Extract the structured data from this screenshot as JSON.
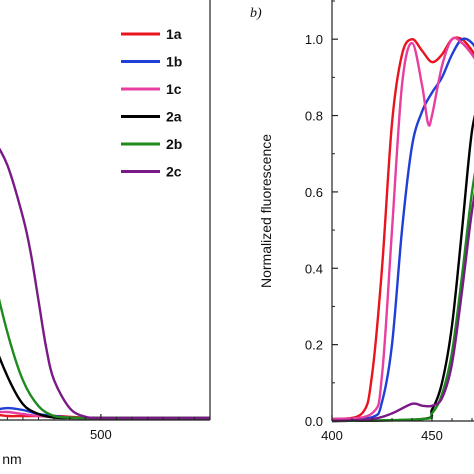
{
  "chart_data": [
    {
      "type": "line",
      "panel": "a",
      "title": "",
      "xlabel": "nm",
      "ylabel": "",
      "xlim": [
        400,
        570
      ],
      "ylim": [
        0,
        1.05
      ],
      "x_ticks": [
        500
      ],
      "grid": false,
      "legend_placement": "top-right",
      "legend": [
        {
          "name": "1a",
          "color": "#e8141e"
        },
        {
          "name": "1b",
          "color": "#1f3fd6"
        },
        {
          "name": "1c",
          "color": "#e83ea0"
        },
        {
          "name": "2a",
          "color": "#000000"
        },
        {
          "name": "2b",
          "color": "#1e8a1e"
        },
        {
          "name": "2c",
          "color": "#7a1a86"
        }
      ],
      "series": [
        {
          "name": "1a",
          "color": "#e8141e",
          "x": [
            400,
            410,
            420,
            430,
            440,
            450,
            460,
            470,
            480,
            490,
            500,
            520,
            540,
            570
          ],
          "y": [
            0.04,
            0.03,
            0.02,
            0.015,
            0.01,
            0.01,
            0.01,
            0.01,
            0.008,
            0.006,
            0.005,
            0.005,
            0.005,
            0.005
          ]
        },
        {
          "name": "1b",
          "color": "#1f3fd6",
          "x": [
            400,
            410,
            420,
            430,
            440,
            450,
            460,
            470,
            480,
            490,
            500,
            520,
            540,
            570
          ],
          "y": [
            0.05,
            0.04,
            0.03,
            0.025,
            0.03,
            0.025,
            0.015,
            0.01,
            0.006,
            0.005,
            0.005,
            0.005,
            0.005,
            0.005
          ]
        },
        {
          "name": "1c",
          "color": "#e83ea0",
          "x": [
            400,
            410,
            420,
            430,
            440,
            450,
            460,
            470,
            480,
            490,
            500,
            520,
            540,
            570
          ],
          "y": [
            0.045,
            0.035,
            0.03,
            0.02,
            0.02,
            0.015,
            0.01,
            0.008,
            0.006,
            0.005,
            0.005,
            0.005,
            0.005,
            0.005
          ]
        },
        {
          "name": "2a",
          "color": "#000000",
          "x": [
            400,
            410,
            420,
            430,
            440,
            450,
            460,
            470,
            480,
            490,
            500,
            520,
            540,
            570
          ],
          "y": [
            0.53,
            0.46,
            0.34,
            0.21,
            0.11,
            0.04,
            0.015,
            0.006,
            0.005,
            0.005,
            0.005,
            0.005,
            0.005,
            0.005
          ]
        },
        {
          "name": "2b",
          "color": "#1e8a1e",
          "x": [
            400,
            410,
            420,
            430,
            440,
            450,
            460,
            470,
            480,
            490,
            500,
            520,
            540,
            570
          ],
          "y": [
            0.8,
            0.71,
            0.55,
            0.38,
            0.22,
            0.1,
            0.035,
            0.01,
            0.006,
            0.005,
            0.005,
            0.005,
            0.005,
            0.005
          ]
        },
        {
          "name": "2c",
          "color": "#7a1a86",
          "x": [
            400,
            410,
            420,
            430,
            440,
            450,
            455,
            460,
            465,
            470,
            480,
            490,
            500,
            520,
            540,
            570
          ],
          "y": [
            0.93,
            0.85,
            0.76,
            0.71,
            0.64,
            0.51,
            0.42,
            0.3,
            0.18,
            0.1,
            0.03,
            0.008,
            0.005,
            0.005,
            0.005,
            0.005
          ]
        }
      ]
    },
    {
      "type": "line",
      "panel": "b",
      "panel_label": "b)",
      "title": "",
      "xlabel": "",
      "ylabel": "Normalized fluorescence",
      "xlim": [
        400,
        475
      ],
      "ylim": [
        0,
        1.1
      ],
      "x_ticks": [
        400,
        450
      ],
      "y_ticks": [
        "0.0",
        "0.2",
        "0.4",
        "0.6",
        "0.8",
        "1.0"
      ],
      "y_tick_values": [
        0,
        0.2,
        0.4,
        0.6,
        0.8,
        1.0
      ],
      "grid": false,
      "series": [
        {
          "name": "1a",
          "color": "#e8141e",
          "x": [
            400,
            415,
            420,
            425,
            430,
            435,
            440,
            445,
            450,
            455,
            460,
            465,
            470,
            475
          ],
          "y": [
            0.005,
            0.02,
            0.12,
            0.4,
            0.78,
            0.96,
            1.0,
            0.97,
            0.94,
            0.96,
            1.0,
            1.0,
            0.97,
            0.93
          ]
        },
        {
          "name": "1b",
          "color": "#1f3fd6",
          "x": [
            400,
            420,
            425,
            430,
            435,
            440,
            445,
            450,
            455,
            460,
            465,
            470,
            475
          ],
          "y": [
            0.005,
            0.01,
            0.05,
            0.2,
            0.5,
            0.72,
            0.81,
            0.86,
            0.9,
            0.96,
            1.0,
            0.99,
            0.95
          ]
        },
        {
          "name": "1c",
          "color": "#e83ea0",
          "x": [
            400,
            420,
            425,
            430,
            435,
            440,
            445,
            448,
            450,
            455,
            460,
            465,
            470,
            475
          ],
          "y": [
            0.005,
            0.02,
            0.12,
            0.5,
            0.88,
            0.99,
            0.88,
            0.78,
            0.8,
            0.93,
            1.0,
            0.99,
            0.96,
            0.92
          ]
        },
        {
          "name": "2a",
          "color": "#000000",
          "x": [
            400,
            445,
            450,
            455,
            460,
            465,
            470,
            475
          ],
          "y": [
            0.0,
            0.005,
            0.03,
            0.1,
            0.25,
            0.5,
            0.76,
            0.86
          ]
        },
        {
          "name": "2b",
          "color": "#1e8a1e",
          "x": [
            400,
            445,
            450,
            455,
            460,
            465,
            470,
            475
          ],
          "y": [
            0.0,
            0.005,
            0.02,
            0.07,
            0.18,
            0.38,
            0.6,
            0.75
          ]
        },
        {
          "name": "2c",
          "color": "#7a1a86",
          "x": [
            400,
            420,
            430,
            440,
            445,
            450,
            455,
            460,
            465,
            470,
            475
          ],
          "y": [
            0.0,
            0.005,
            0.02,
            0.045,
            0.04,
            0.04,
            0.06,
            0.15,
            0.34,
            0.55,
            0.7
          ]
        }
      ]
    }
  ]
}
